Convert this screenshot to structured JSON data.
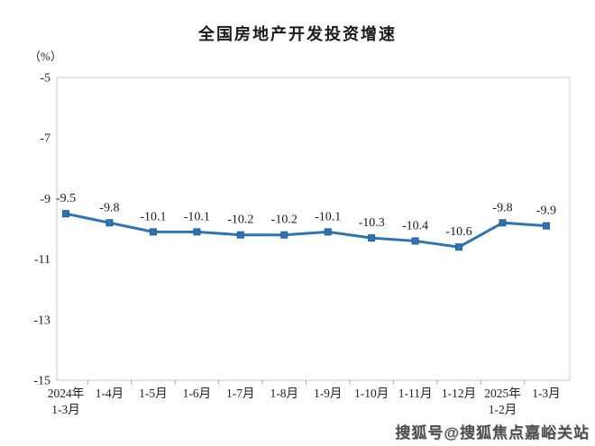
{
  "title": "全国房地产开发投资增速",
  "y_unit_label": "（%）",
  "watermark": "搜狐号@搜狐焦点嘉峪关站",
  "chart_data": {
    "type": "line",
    "title": "全国房地产开发投资增速",
    "unit_label": "（%）",
    "categories": [
      [
        "2024年",
        "1-3月"
      ],
      [
        "1-4月"
      ],
      [
        "1-5月"
      ],
      [
        "1-6月"
      ],
      [
        "1-7月"
      ],
      [
        "1-8月"
      ],
      [
        "1-9月"
      ],
      [
        "1-10月"
      ],
      [
        "1-11月"
      ],
      [
        "1-12月"
      ],
      [
        "2025年",
        "1-2月"
      ],
      [
        "1-3月"
      ]
    ],
    "series": [
      {
        "name": "全国房地产开发投资增速",
        "values": [
          -9.5,
          -9.8,
          -10.1,
          -10.1,
          -10.2,
          -10.2,
          -10.1,
          -10.3,
          -10.4,
          -10.6,
          -9.8,
          -9.9
        ],
        "data_labels": [
          "-9.5",
          "-9.8",
          "-10.1",
          "-10.1",
          "-10.2",
          "-10.2",
          "-10.1",
          "-10.3",
          "-10.4",
          "-10.6",
          "-9.8",
          "-9.9"
        ]
      }
    ],
    "xlabel": "",
    "ylabel": "（%）",
    "ylim": [
      -15,
      -5
    ],
    "yticks": [
      -5,
      -7,
      -9,
      -11,
      -13,
      -15
    ],
    "grid": false,
    "legend": "none",
    "colors": {
      "line": "#2E74B5",
      "marker": "#2E74B5",
      "plot_border": "#c9c9c9",
      "tick": "#aaaaaa",
      "text": "#222222",
      "data_label": "#1a1a1a"
    },
    "marker_shape": "square",
    "data_label_position": "above"
  }
}
